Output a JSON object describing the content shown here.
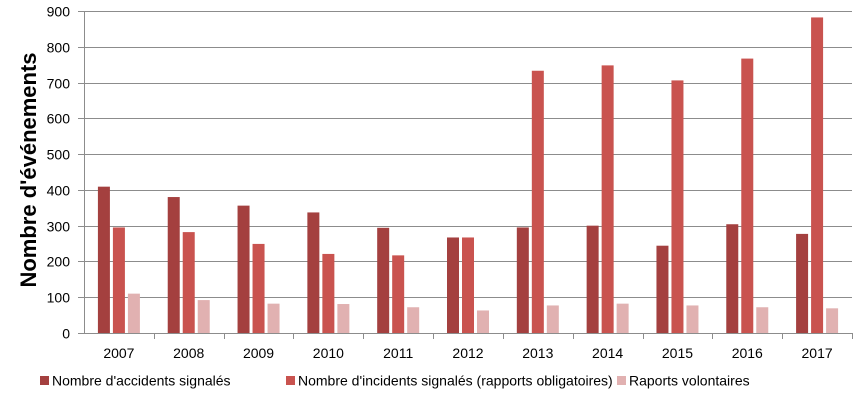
{
  "chart_data": {
    "type": "bar",
    "title": "",
    "xlabel": "",
    "ylabel": "Nombre d'événements",
    "ylim": [
      0,
      900
    ],
    "yticks": [
      0,
      100,
      200,
      300,
      400,
      500,
      600,
      700,
      800,
      900
    ],
    "grid": true,
    "legend_position": "bottom",
    "categories": [
      "2007",
      "2008",
      "2009",
      "2010",
      "2011",
      "2012",
      "2013",
      "2014",
      "2015",
      "2016",
      "2017"
    ],
    "series": [
      {
        "name": "Nombre d'accidents signalés",
        "color": "#a4403f",
        "values": [
          409,
          380,
          356,
          337,
          294,
          267,
          295,
          300,
          244,
          304,
          277
        ]
      },
      {
        "name": "Nombre d'incidents signalés (rapports obligatoires)",
        "color": "#c9534f",
        "values": [
          295,
          282,
          249,
          221,
          217,
          267,
          733,
          748,
          706,
          767,
          882
        ]
      },
      {
        "name": "Raports volontaires",
        "color": "#e1b1b1",
        "values": [
          110,
          92,
          82,
          81,
          72,
          63,
          77,
          82,
          77,
          72,
          69
        ]
      }
    ]
  }
}
